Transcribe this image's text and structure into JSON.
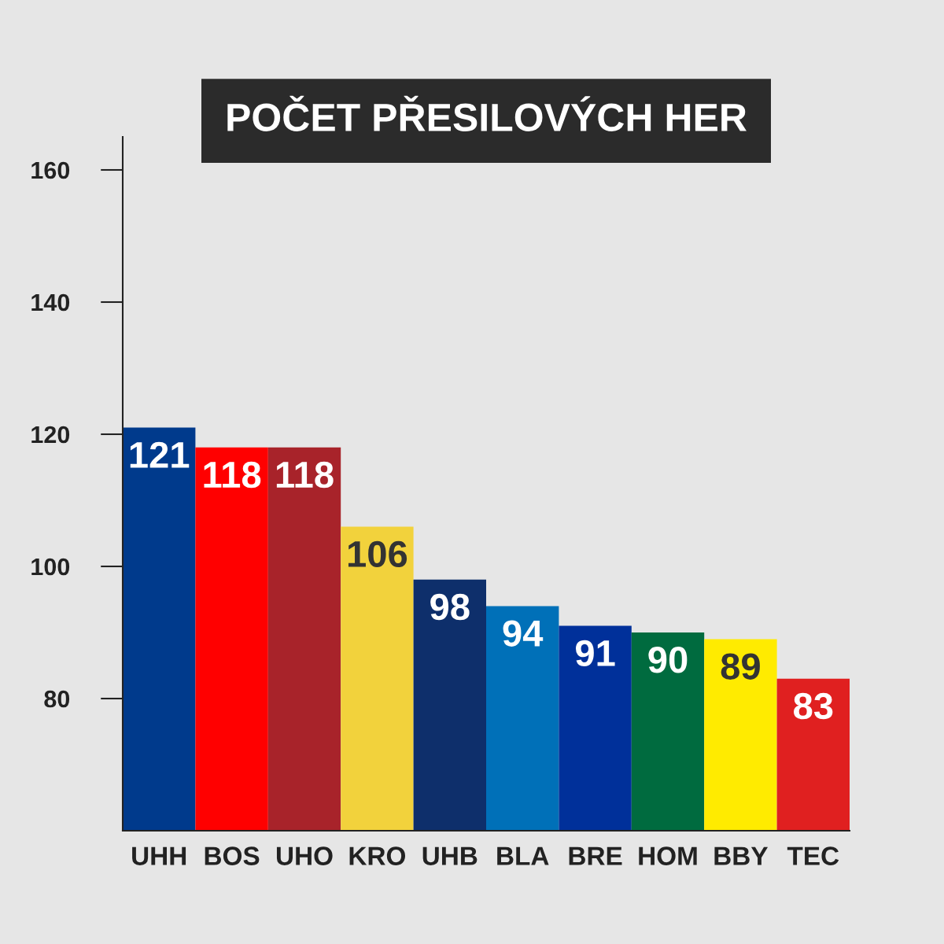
{
  "chart_data": {
    "type": "bar",
    "title": "POČET PŘESILOVÝCH HER",
    "categories": [
      "UHH",
      "BOS",
      "UHO",
      "KRO",
      "UHB",
      "BLA",
      "BRE",
      "HOM",
      "BBY",
      "TEC"
    ],
    "values": [
      121,
      118,
      118,
      106,
      98,
      94,
      91,
      90,
      89,
      83
    ],
    "colors": [
      "#003a8c",
      "#ff0000",
      "#a8232a",
      "#f2d23c",
      "#0e2f6b",
      "#0070b8",
      "#00309a",
      "#006b3f",
      "#ffeb00",
      "#e02020"
    ],
    "ylim": [
      60,
      165
    ],
    "yticks": [
      80,
      100,
      120,
      140,
      160
    ],
    "data_labels": true,
    "grid": false,
    "legend": false
  }
}
